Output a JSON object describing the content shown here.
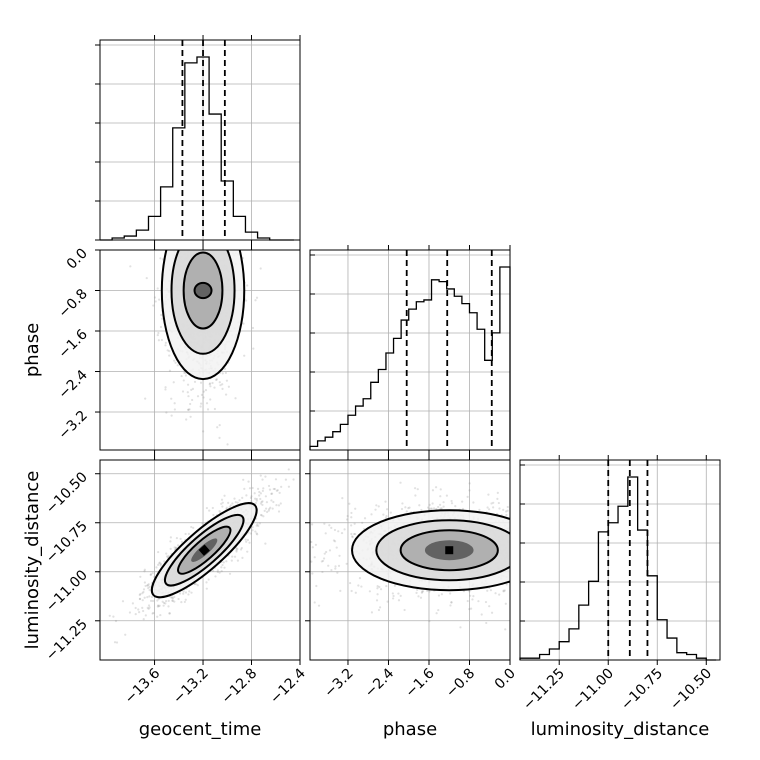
{
  "chart_data": {
    "type": "corner",
    "grid": true,
    "parameters": [
      {
        "name": "geocent_time",
        "label": "geocent_time",
        "ticks": [
          -13.6,
          -13.2,
          -12.8,
          -12.4
        ],
        "tick_labels": [
          "−13.6",
          "−13.2",
          "−12.8",
          "−12.4"
        ],
        "range": [
          -14.05,
          -12.4
        ],
        "quantiles": [
          -13.37,
          -13.2,
          -13.02
        ]
      },
      {
        "name": "phase",
        "label": "phase",
        "ticks": [
          -3.2,
          -2.4,
          -1.6,
          -0.8,
          0.0
        ],
        "tick_labels": [
          "−3.2",
          "−2.4",
          "−1.6",
          "−0.8",
          "0.0"
        ],
        "range": [
          -3.95,
          0.0
        ],
        "quantiles": [
          -2.04,
          -1.24,
          -0.36
        ]
      },
      {
        "name": "luminosity_distance",
        "label": "luminosity_distance",
        "ticks": [
          -11.25,
          -11.0,
          -10.75,
          -10.5
        ],
        "tick_labels": [
          "−11.25",
          "−11.00",
          "−10.75",
          "−10.50"
        ],
        "range": [
          -11.45,
          -10.43
        ],
        "quantiles": [
          -11.0,
          -10.89,
          -10.8
        ]
      }
    ],
    "histograms": [
      {
        "param": "geocent_time",
        "bin_edges": [
          -14.05,
          -13.95,
          -13.85,
          -13.75,
          -13.65,
          -13.55,
          -13.45,
          -13.35,
          -13.25,
          -13.15,
          -13.05,
          -12.95,
          -12.85,
          -12.75,
          -12.65,
          -12.55,
          -12.45
        ],
        "counts": [
          0,
          1,
          2,
          5,
          12,
          27,
          57,
          90,
          93,
          64,
          30,
          12,
          4,
          1,
          0,
          0
        ]
      },
      {
        "param": "phase",
        "bin_edges": [
          -3.95,
          -3.8,
          -3.65,
          -3.5,
          -3.35,
          -3.2,
          -3.05,
          -2.9,
          -2.75,
          -2.6,
          -2.45,
          -2.3,
          -2.15,
          -2.0,
          -1.85,
          -1.7,
          -1.55,
          -1.4,
          -1.25,
          -1.1,
          -0.95,
          -0.8,
          -0.65,
          -0.5,
          -0.35,
          -0.2,
          0.0
        ],
        "counts": [
          2,
          5,
          7,
          10,
          14,
          19,
          24,
          28,
          37,
          44,
          53,
          61,
          71,
          77,
          81,
          82,
          93,
          92,
          88,
          84,
          80,
          75,
          66,
          49,
          64,
          100
        ]
      },
      {
        "param": "luminosity_distance",
        "bin_edges": [
          -11.45,
          -11.4,
          -11.35,
          -11.3,
          -11.25,
          -11.2,
          -11.15,
          -11.1,
          -11.05,
          -11.0,
          -10.95,
          -10.9,
          -10.85,
          -10.8,
          -10.75,
          -10.7,
          -10.65,
          -10.6,
          -10.55,
          -10.5,
          -10.45
        ],
        "counts": [
          1,
          1,
          3,
          6,
          10,
          17,
          30,
          43,
          70,
          75,
          84,
          100,
          71,
          46,
          22,
          12,
          4,
          3,
          1,
          0
        ]
      }
    ],
    "pairs": [
      {
        "x": "geocent_time",
        "y": "phase",
        "center": [
          -13.2,
          -0.8
        ],
        "sd": [
          0.11,
          0.75
        ],
        "rho": 0.0,
        "contour_halfwidths": [
          [
            0.07,
            0.15
          ],
          [
            0.16,
            0.75
          ],
          [
            0.26,
            1.25
          ],
          [
            0.34,
            1.75
          ]
        ]
      },
      {
        "x": "geocent_time",
        "y": "luminosity_distance",
        "center": [
          -13.19,
          -10.89
        ],
        "sd": [
          0.18,
          0.1
        ],
        "rho": 0.85
      },
      {
        "x": "phase",
        "y": "luminosity_distance",
        "center": [
          -1.2,
          -10.89
        ],
        "sd": [
          0.8,
          0.085
        ],
        "rho": 0.0
      }
    ]
  }
}
